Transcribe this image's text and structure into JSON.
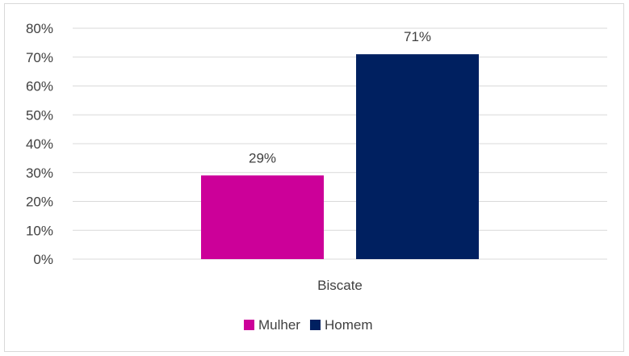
{
  "chart_data": {
    "type": "bar",
    "categories": [
      "Biscate"
    ],
    "series": [
      {
        "name": "Mulher",
        "values": [
          29
        ],
        "color": "#CC0099",
        "label": "29%"
      },
      {
        "name": "Homem",
        "values": [
          71
        ],
        "color": "#002060",
        "label": "71%"
      }
    ],
    "ylim": [
      0,
      80
    ],
    "yticks": [
      {
        "value": 0,
        "label": "0%"
      },
      {
        "value": 10,
        "label": "10%"
      },
      {
        "value": 20,
        "label": "20%"
      },
      {
        "value": 30,
        "label": "30%"
      },
      {
        "value": 40,
        "label": "40%"
      },
      {
        "value": 50,
        "label": "50%"
      },
      {
        "value": 60,
        "label": "60%"
      },
      {
        "value": 70,
        "label": "70%"
      },
      {
        "value": 80,
        "label": "80%"
      }
    ],
    "grid": true,
    "legend_position": "bottom",
    "title": "",
    "xlabel": "",
    "ylabel": ""
  }
}
